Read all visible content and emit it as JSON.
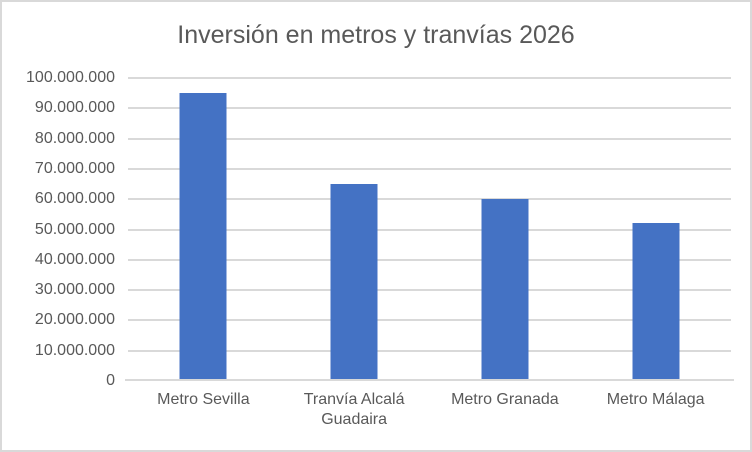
{
  "chart_data": {
    "type": "bar",
    "title": "Inversión en metros y tranvías 2026",
    "categories": [
      "Metro Sevilla",
      "Tranvía Alcalá Guadaira",
      "Metro Granada",
      "Metro Málaga"
    ],
    "values": [
      95000000,
      65000000,
      60000000,
      52000000
    ],
    "xlabel": "",
    "ylabel": "",
    "ylim": [
      0,
      100000000
    ],
    "ytick_step": 10000000,
    "ytick_labels": [
      "0",
      "10.000.000",
      "20.000.000",
      "30.000.000",
      "40.000.000",
      "50.000.000",
      "60.000.000",
      "70.000.000",
      "80.000.000",
      "90.000.000",
      "100.000.000"
    ],
    "grid": true,
    "legend": false,
    "bar_color": "#4472C4",
    "gridline_color": "#D9D9D9",
    "axis_line_color": "#D9D9D9",
    "text_color": "#595959",
    "background_color": "#FFFFFF",
    "border_color": "#D9D9D9"
  }
}
